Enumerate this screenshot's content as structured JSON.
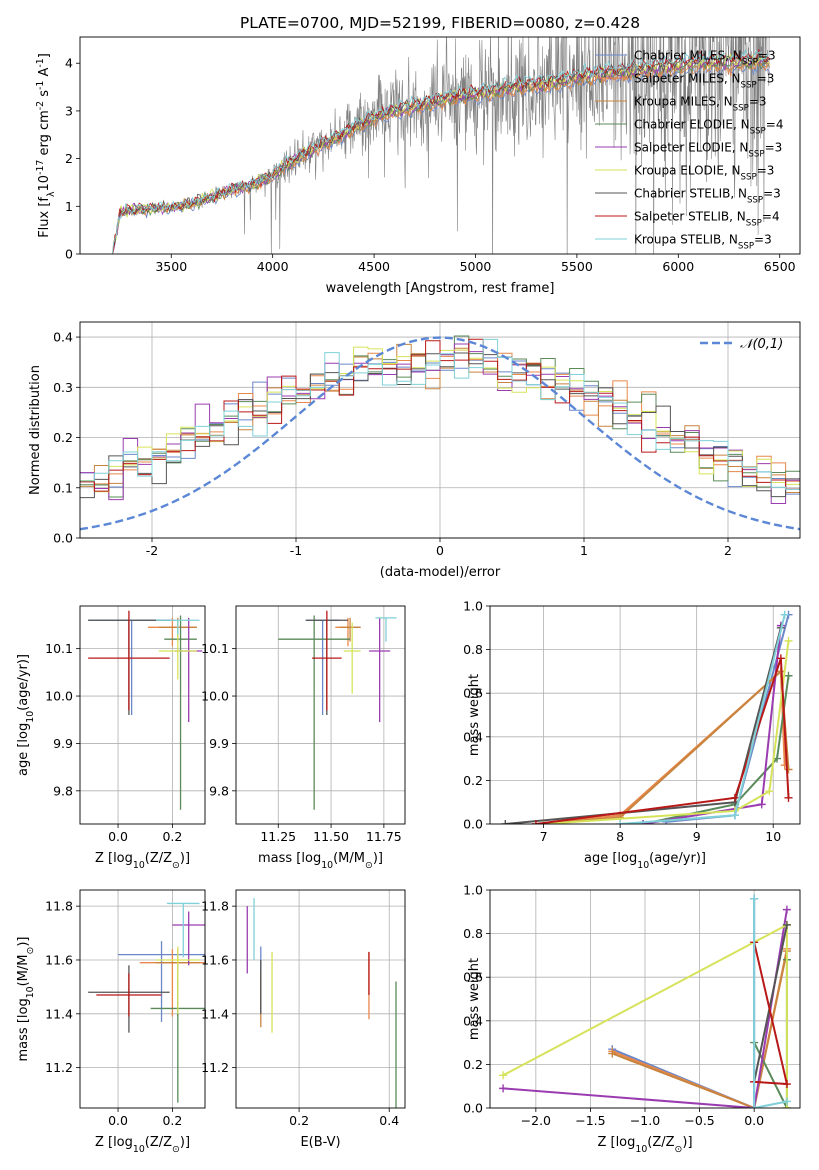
{
  "title": "PLATE=0700, MJD=52199, FIBERID=0080, z=0.428",
  "models": [
    {
      "name": "Chabrier MILES, N$_{SSP}$=3",
      "color": "#6a87c9"
    },
    {
      "name": "Salpeter MILES, N$_{SSP}$=3",
      "color": "#e8884a"
    },
    {
      "name": "Kroupa MILES, N$_{SSP}$=3",
      "color": "#c8843e"
    },
    {
      "name": "Chabrier ELODIE, N$_{SSP}$=4",
      "color": "#5a8a5a"
    },
    {
      "name": "Salpeter ELODIE, N$_{SSP}$=3",
      "color": "#9a3cb0"
    },
    {
      "name": "Kroupa ELODIE, N$_{SSP}$=3",
      "color": "#d6e35a"
    },
    {
      "name": "Chabrier STELIB, N$_{SSP}$=3",
      "color": "#555555"
    },
    {
      "name": "Salpeter STELIB, N$_{SSP}$=4",
      "color": "#b81818"
    },
    {
      "name": "Kroupa STELIB, N$_{SSP}$=3",
      "color": "#7fd0d8"
    }
  ],
  "chart_data": [
    {
      "id": "spectrum",
      "type": "line",
      "xlabel": "wavelength [Angstrom, rest frame]",
      "ylabel": "Flux [f$_\\lambda$10$^{-17}$ erg cm$^{-2}$ s$^{-1}$ A$^{-1}$]",
      "xlim": [
        3050,
        6600
      ],
      "ylim": [
        0,
        4.55
      ],
      "xticks": [
        3500,
        4000,
        4500,
        5000,
        5500,
        6000,
        6500
      ],
      "yticks": [
        0,
        1,
        2,
        3,
        4
      ],
      "grid": false,
      "legend": "top-right",
      "data_color": "#808080",
      "model_x": [
        3210,
        3250,
        3300,
        3400,
        3500,
        3600,
        3700,
        3800,
        3900,
        4000,
        4100,
        4200,
        4300,
        4400,
        4500,
        4600,
        4700,
        4800,
        4900,
        5000,
        5100,
        5200,
        5300,
        5400,
        5500,
        5600,
        5700,
        5800,
        5900,
        6000,
        6100,
        6200,
        6300,
        6400,
        6450
      ],
      "model_y": [
        0.0,
        0.88,
        0.92,
        0.95,
        0.98,
        1.05,
        1.2,
        1.35,
        1.45,
        1.65,
        1.95,
        2.2,
        2.4,
        2.65,
        2.85,
        3.0,
        3.1,
        3.2,
        3.3,
        3.35,
        3.42,
        3.5,
        3.55,
        3.6,
        3.7,
        3.75,
        3.8,
        3.85,
        3.9,
        3.95,
        4.0,
        4.0,
        4.02,
        4.05,
        4.0
      ],
      "noise_start": 3500
    },
    {
      "id": "residuals",
      "type": "step",
      "xlabel": "(data-model)/error",
      "ylabel": "Normed distribution",
      "xlim": [
        -2.5,
        2.5
      ],
      "ylim": [
        0,
        0.43
      ],
      "xticks": [
        -2,
        -1,
        0,
        1,
        2
      ],
      "yticks": [
        0.0,
        0.1,
        0.2,
        0.3,
        0.4
      ],
      "grid": true,
      "gaussian_label": "$\\mathcal{N}(0,1)$",
      "gaussian_color": "#5b87d6",
      "nbins": 50
    },
    {
      "id": "age_vs_Z",
      "type": "errorbar",
      "xlabel": "Z [log$_{10}$(Z/Z$_\\odot$)]",
      "ylabel": "age  [log$_{10}$(age/yr)]",
      "xlim": [
        -0.14,
        0.32
      ],
      "ylim": [
        9.73,
        10.19
      ],
      "xticks": [
        0.0,
        0.2
      ],
      "yticks": [
        9.8,
        9.9,
        10.0,
        10.1
      ],
      "grid": true,
      "points": [
        {
          "m": 0,
          "x": 0.05,
          "y": 10.16,
          "xe": 0.16,
          "ye": [
            0.2,
            0.0
          ]
        },
        {
          "m": 1,
          "x": 0.2,
          "y": 10.145,
          "xe": 0.09,
          "ye": [
            0.04,
            0.02
          ]
        },
        {
          "m": 2,
          "x": 0.22,
          "y": 10.145,
          "xe": 0.07,
          "ye": [
            0.03,
            0.02
          ]
        },
        {
          "m": 3,
          "x": 0.23,
          "y": 10.12,
          "xe": 0.06,
          "ye": [
            0.36,
            0.05
          ]
        },
        {
          "m": 4,
          "x": 0.26,
          "y": 10.095,
          "xe": 0.05,
          "ye": [
            0.15,
            0.07
          ]
        },
        {
          "m": 5,
          "x": 0.22,
          "y": 10.095,
          "xe": 0.07,
          "ye": [
            0.06,
            0.06
          ]
        },
        {
          "m": 6,
          "x": 0.04,
          "y": 10.16,
          "xe": 0.15,
          "ye": [
            0.2,
            0.0
          ]
        },
        {
          "m": 7,
          "x": 0.04,
          "y": 10.08,
          "xe": 0.15,
          "ye": [
            0.11,
            0.1
          ]
        },
        {
          "m": 8,
          "x": 0.22,
          "y": 10.16,
          "xe": 0.08,
          "ye": [
            0.03,
            0.0
          ]
        }
      ]
    },
    {
      "id": "age_vs_mass",
      "type": "errorbar",
      "xlabel": "mass [log$_{10}$(M/M$_\\odot$)]",
      "ylabel": "",
      "xlim": [
        11.05,
        11.85
      ],
      "ylim": [
        9.73,
        10.19
      ],
      "xticks": [
        11.25,
        11.5,
        11.75
      ],
      "yticks": [
        9.8,
        9.9,
        10.0,
        10.1
      ],
      "grid": true,
      "points": [
        {
          "m": 0,
          "x": 11.46,
          "y": 10.16,
          "xe": 0.08,
          "ye": [
            0.2,
            0.0
          ]
        },
        {
          "m": 1,
          "x": 11.58,
          "y": 10.145,
          "xe": 0.06,
          "ye": [
            0.04,
            0.02
          ]
        },
        {
          "m": 2,
          "x": 11.59,
          "y": 10.145,
          "xe": 0.05,
          "ye": [
            0.03,
            0.02
          ]
        },
        {
          "m": 3,
          "x": 11.42,
          "y": 10.12,
          "xe": 0.17,
          "ye": [
            0.36,
            0.05
          ]
        },
        {
          "m": 4,
          "x": 11.73,
          "y": 10.095,
          "xe": 0.05,
          "ye": [
            0.15,
            0.07
          ]
        },
        {
          "m": 5,
          "x": 11.6,
          "y": 10.095,
          "xe": 0.04,
          "ye": [
            0.09,
            0.06
          ]
        },
        {
          "m": 6,
          "x": 11.48,
          "y": 10.16,
          "xe": 0.1,
          "ye": [
            0.2,
            0.0
          ]
        },
        {
          "m": 7,
          "x": 11.48,
          "y": 10.08,
          "xe": 0.07,
          "ye": [
            0.11,
            0.1
          ]
        },
        {
          "m": 8,
          "x": 11.76,
          "y": 10.165,
          "xe": 0.05,
          "ye": [
            0.05,
            0.0
          ]
        }
      ]
    },
    {
      "id": "weight_vs_age",
      "type": "line",
      "xlabel": "age  [log$_{10}$(age/yr)]",
      "ylabel": "mass weight",
      "xlim": [
        6.3,
        10.35
      ],
      "ylim": [
        0,
        1
      ],
      "xticks": [
        7,
        8,
        9,
        10
      ],
      "yticks": [
        0.0,
        0.2,
        0.4,
        0.6,
        0.8,
        1.0
      ],
      "grid": true,
      "series": [
        {
          "m": 0,
          "x": [
            8.6,
            9.5,
            10.2
          ],
          "y": [
            0.01,
            0.04,
            0.96
          ]
        },
        {
          "m": 1,
          "x": [
            7.0,
            8.0,
            10.1,
            10.15
          ],
          "y": [
            0.0,
            0.04,
            0.7,
            0.27
          ]
        },
        {
          "m": 2,
          "x": [
            7.0,
            8.0,
            10.1,
            10.2
          ],
          "y": [
            0.0,
            0.03,
            0.7,
            0.25
          ]
        },
        {
          "m": 3,
          "x": [
            8.3,
            9.5,
            10.05,
            10.2
          ],
          "y": [
            0.0,
            0.09,
            0.3,
            0.68
          ]
        },
        {
          "m": 4,
          "x": [
            8.3,
            9.85,
            10.1
          ],
          "y": [
            0.0,
            0.09,
            0.91
          ]
        },
        {
          "m": 5,
          "x": [
            7.0,
            9.5,
            9.95,
            10.2
          ],
          "y": [
            0.0,
            0.06,
            0.15,
            0.84
          ]
        },
        {
          "m": 6,
          "x": [
            6.5,
            9.5,
            10.1
          ],
          "y": [
            0.0,
            0.1,
            0.9
          ]
        },
        {
          "m": 7,
          "x": [
            6.9,
            9.5,
            10.1,
            10.2
          ],
          "y": [
            0.0,
            0.12,
            0.76,
            0.12
          ]
        },
        {
          "m": 8,
          "x": [
            8.0,
            9.5,
            10.15
          ],
          "y": [
            0.0,
            0.04,
            0.96
          ]
        }
      ]
    },
    {
      "id": "mass_vs_Z",
      "type": "errorbar",
      "xlabel": "Z [log$_{10}$(Z/Z$_\\odot$)]",
      "ylabel": "mass [log$_{10}$(M/M$_\\odot$)]",
      "xlim": [
        -0.14,
        0.32
      ],
      "ylim": [
        11.05,
        11.86
      ],
      "xticks": [
        0.0,
        0.2
      ],
      "yticks": [
        11.2,
        11.4,
        11.6,
        11.8
      ],
      "grid": true,
      "points": [
        {
          "m": 0,
          "x": 0.16,
          "y": 11.62,
          "xe": 0.16,
          "ye": [
            0.25,
            0.05
          ]
        },
        {
          "m": 1,
          "x": 0.2,
          "y": 11.59,
          "xe": 0.12,
          "ye": [
            0.2,
            0.05
          ]
        },
        {
          "m": 2,
          "x": 0.22,
          "y": 11.59,
          "xe": 0.08,
          "ye": [
            0.2,
            0.05
          ]
        },
        {
          "m": 3,
          "x": 0.22,
          "y": 11.42,
          "xe": 0.1,
          "ye": [
            0.35,
            0.1
          ]
        },
        {
          "m": 4,
          "x": 0.26,
          "y": 11.73,
          "xe": 0.06,
          "ye": [
            0.15,
            0.05
          ]
        },
        {
          "m": 5,
          "x": 0.22,
          "y": 11.6,
          "xe": 0.08,
          "ye": [
            0.2,
            0.05
          ]
        },
        {
          "m": 6,
          "x": 0.04,
          "y": 11.48,
          "xe": 0.15,
          "ye": [
            0.15,
            0.1
          ]
        },
        {
          "m": 7,
          "x": 0.04,
          "y": 11.47,
          "xe": 0.12,
          "ye": [
            0.08,
            0.08
          ]
        },
        {
          "m": 8,
          "x": 0.24,
          "y": 11.81,
          "xe": 0.06,
          "ye": [
            0.2,
            0.0
          ]
        }
      ]
    },
    {
      "id": "mass_vs_ebv",
      "type": "errorbar",
      "xlabel": "E(B-V)",
      "ylabel": "",
      "xlim": [
        0.06,
        0.435
      ],
      "ylim": [
        11.05,
        11.86
      ],
      "xticks": [
        0.2,
        0.4
      ],
      "yticks": [
        11.2,
        11.4,
        11.6,
        11.8
      ],
      "grid": true,
      "points": [
        {
          "m": 0,
          "x": 0.115,
          "y": 11.55,
          "xe": 0,
          "ye": [
            0.15,
            0.1
          ]
        },
        {
          "m": 1,
          "x": 0.355,
          "y": 11.58,
          "xe": 0,
          "ye": [
            0.2,
            0.05
          ]
        },
        {
          "m": 2,
          "x": 0.115,
          "y": 11.45,
          "xe": 0,
          "ye": [
            0.1,
            0.1
          ]
        },
        {
          "m": 3,
          "x": 0.415,
          "y": 11.3,
          "xe": 0,
          "ye": [
            0.25,
            0.22
          ]
        },
        {
          "m": 4,
          "x": 0.085,
          "y": 11.7,
          "xe": 0,
          "ye": [
            0.15,
            0.1
          ]
        },
        {
          "m": 5,
          "x": 0.14,
          "y": 11.48,
          "xe": 0,
          "ye": [
            0.15,
            0.15
          ]
        },
        {
          "m": 6,
          "x": 0.115,
          "y": 11.5,
          "xe": 0,
          "ye": [
            0.1,
            0.1
          ]
        },
        {
          "m": 7,
          "x": 0.355,
          "y": 11.55,
          "xe": 0,
          "ye": [
            0.08,
            0.08
          ]
        },
        {
          "m": 8,
          "x": 0.1,
          "y": 11.75,
          "xe": 0,
          "ye": [
            0.15,
            0.08
          ]
        }
      ]
    },
    {
      "id": "weight_vs_Z",
      "type": "line",
      "xlabel": "Z [log$_{10}$(Z/Z$_\\odot$)]",
      "ylabel": "mass weight",
      "xlim": [
        -2.42,
        0.42
      ],
      "ylim": [
        0,
        1
      ],
      "xticks": [
        -2.0,
        -1.5,
        -1.0,
        -0.5,
        0.0
      ],
      "yticks": [
        0.0,
        0.2,
        0.4,
        0.6,
        0.8,
        1.0
      ],
      "grid": true,
      "series": [
        {
          "m": 0,
          "x": [
            -1.3,
            0.0,
            0.0
          ],
          "y": [
            0.27,
            0.0,
            0.96
          ]
        },
        {
          "m": 1,
          "x": [
            -1.3,
            0.0,
            0.3
          ],
          "y": [
            0.26,
            0.0,
            0.73
          ]
        },
        {
          "m": 2,
          "x": [
            -1.3,
            0.0,
            0.3
          ],
          "y": [
            0.25,
            0.0,
            0.72
          ]
        },
        {
          "m": 3,
          "x": [
            0.0,
            0.3,
            0.3
          ],
          "y": [
            0.3,
            0.0,
            0.68
          ]
        },
        {
          "m": 4,
          "x": [
            -2.3,
            0.0,
            0.3
          ],
          "y": [
            0.09,
            0.0,
            0.91
          ]
        },
        {
          "m": 5,
          "x": [
            -2.3,
            0.3,
            0.3
          ],
          "y": [
            0.15,
            0.84,
            0.0
          ]
        },
        {
          "m": 6,
          "x": [
            0.0,
            0.3
          ],
          "y": [
            0.12,
            0.84
          ]
        },
        {
          "m": 7,
          "x": [
            0.0,
            0.3,
            0.0
          ],
          "y": [
            0.12,
            0.11,
            0.76
          ]
        },
        {
          "m": 8,
          "x": [
            0.0,
            0.0,
            0.3
          ],
          "y": [
            0.96,
            0.0,
            0.03
          ]
        }
      ]
    }
  ]
}
